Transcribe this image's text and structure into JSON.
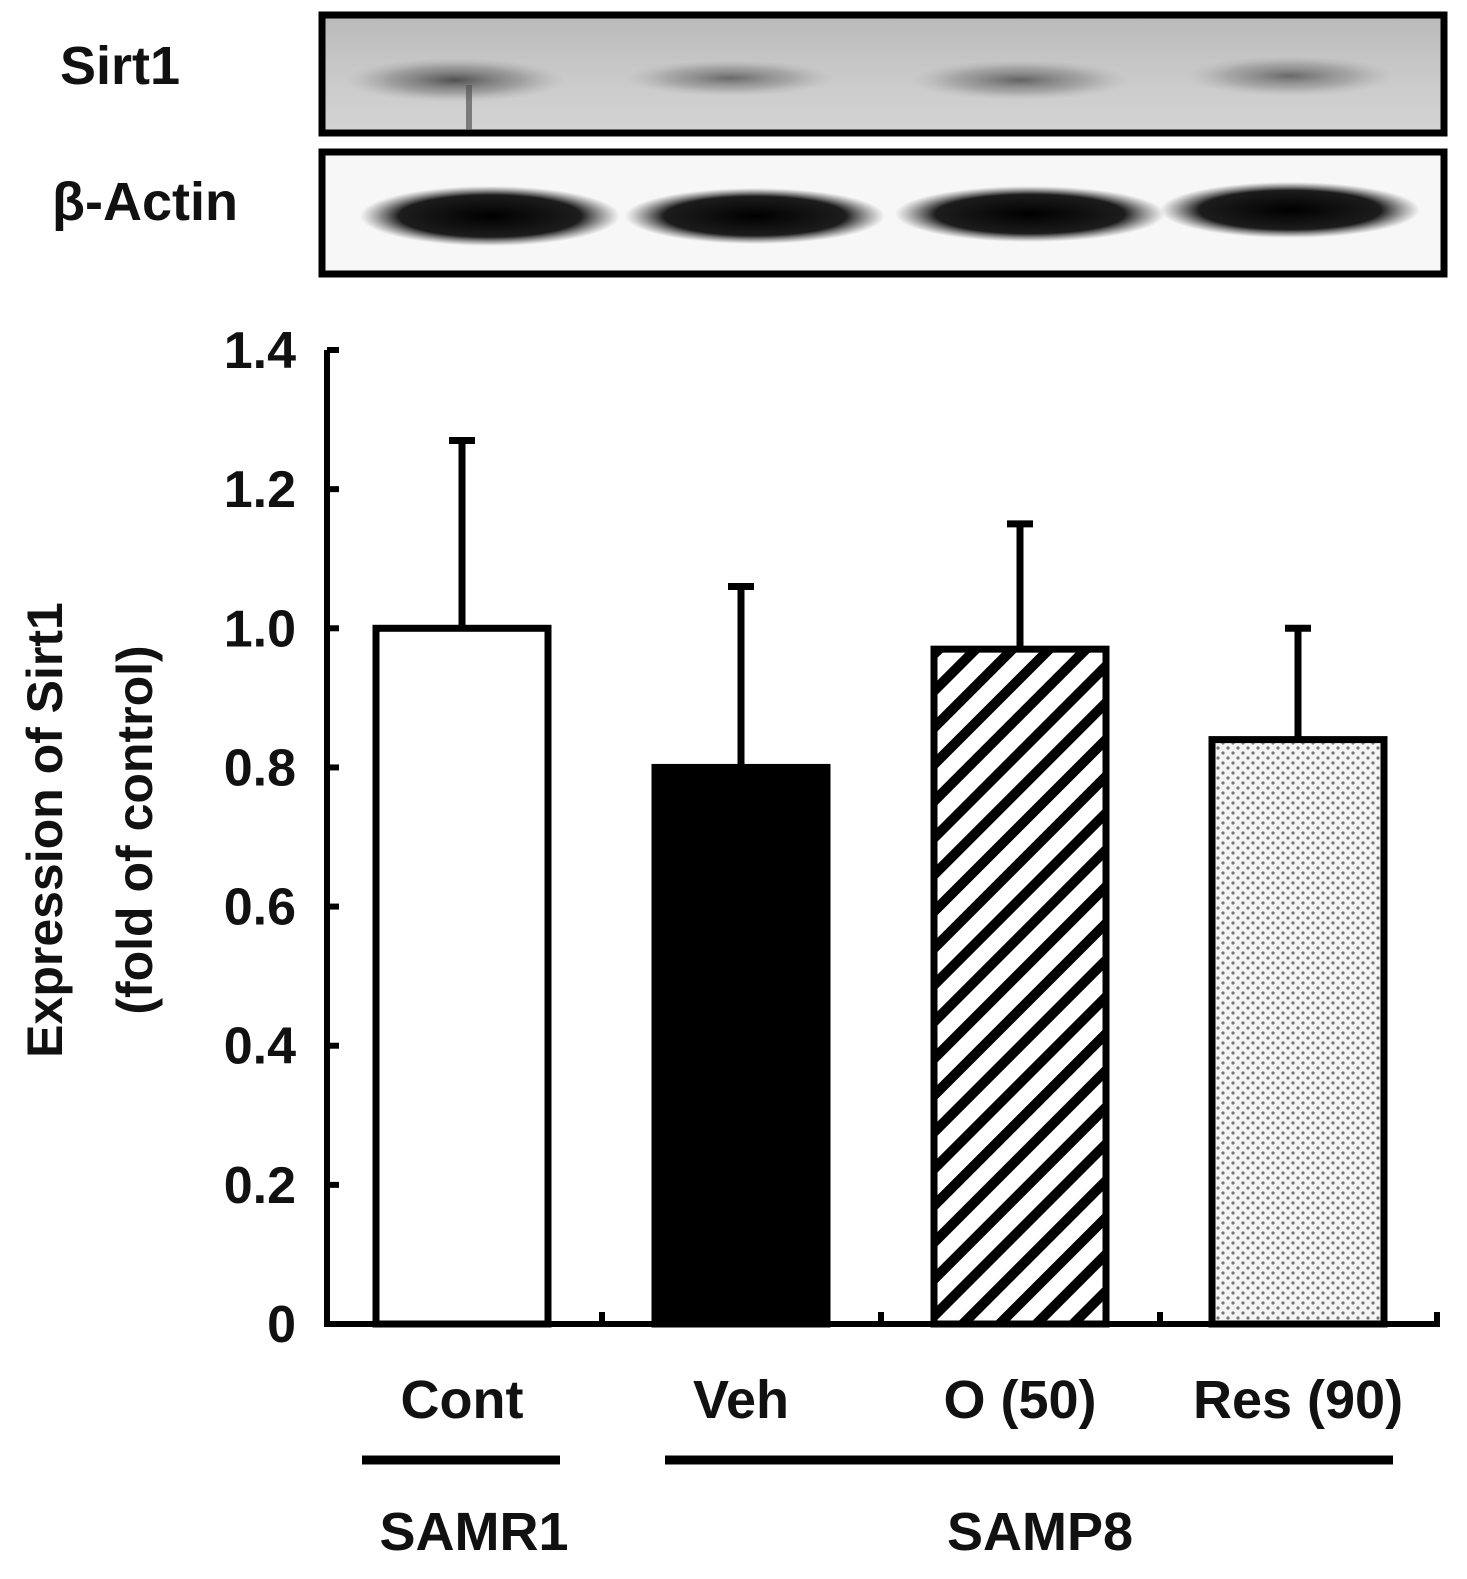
{
  "blot": {
    "rows": [
      {
        "label": "Sirt1"
      },
      {
        "label": "β-Actin"
      }
    ]
  },
  "chart_data": {
    "type": "bar",
    "ylabel_line1": "Expression of Sirt1",
    "ylabel_line2": "(fold of control)",
    "ylim": [
      0,
      1.4
    ],
    "yticks": [
      "0",
      "0.2",
      "0.4",
      "0.6",
      "0.8",
      "1.0",
      "1.2",
      "1.4"
    ],
    "categories": [
      "Cont",
      "Veh",
      "O (50)",
      "Res (90)"
    ],
    "values": [
      1.0,
      0.8,
      0.97,
      0.84
    ],
    "errors": [
      0.27,
      0.26,
      0.18,
      0.16
    ],
    "fills": [
      "white",
      "black",
      "hatched",
      "dotted"
    ],
    "groups": [
      {
        "label": "SAMR1",
        "categories": [
          "Cont"
        ]
      },
      {
        "label": "SAMP8",
        "categories": [
          "Veh",
          "O (50)",
          "Res (90)"
        ]
      }
    ]
  }
}
